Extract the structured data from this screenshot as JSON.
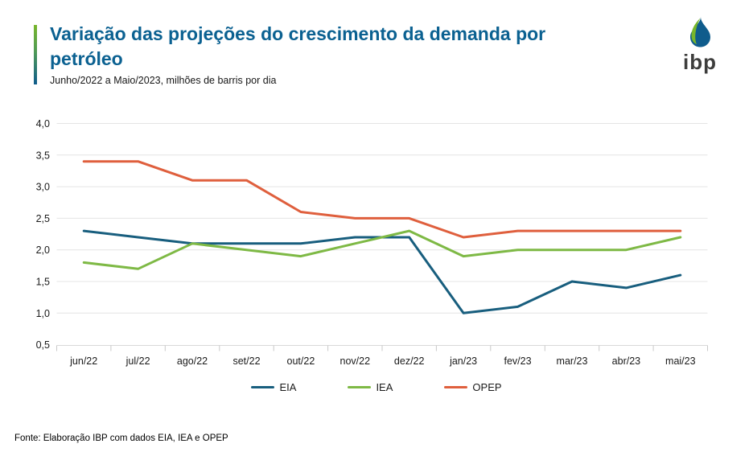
{
  "header": {
    "title": "Variação das projeções do crescimento da demanda por petróleo",
    "subtitle": "Junho/2022 a Maio/2023, milhões de barris por dia",
    "accent_green": "#78b62b",
    "accent_blue": "#0f5c8c",
    "title_color": "#0b6191"
  },
  "logo": {
    "text": "ibp",
    "drop_blue": "#0f5c8c",
    "drop_green": "#78b62b"
  },
  "chart_data": {
    "type": "line",
    "title": "Variação das projeções do crescimento da demanda por petróleo",
    "subtitle": "Junho/2022 a Maio/2023, milhões de barris por dia",
    "categories": [
      "jun/22",
      "jul/22",
      "ago/22",
      "set/22",
      "out/22",
      "nov/22",
      "dez/22",
      "jan/23",
      "fev/23",
      "mar/23",
      "abr/23",
      "mai/23"
    ],
    "series": [
      {
        "name": "EIA",
        "color": "#185e7e",
        "values": [
          2.3,
          2.2,
          2.1,
          2.1,
          2.1,
          2.2,
          2.2,
          1.0,
          1.1,
          1.5,
          1.4,
          1.6
        ]
      },
      {
        "name": "IEA",
        "color": "#7eb945",
        "values": [
          1.8,
          1.7,
          2.1,
          2.0,
          1.9,
          2.1,
          2.3,
          1.9,
          2.0,
          2.0,
          2.0,
          2.2
        ]
      },
      {
        "name": "OPEP",
        "color": "#df5f3d",
        "values": [
          3.4,
          3.4,
          3.1,
          3.1,
          2.6,
          2.5,
          2.5,
          2.2,
          2.3,
          2.3,
          2.3,
          2.3
        ]
      }
    ],
    "ylim": [
      0.5,
      4.0
    ],
    "ytick_step": 0.5,
    "ytick_labels": [
      "0,5",
      "1,0",
      "1,5",
      "2,0",
      "2,5",
      "3,0",
      "3,5",
      "4,0"
    ],
    "decimal_separator": ",",
    "grid": "horizontal",
    "legend_position": "bottom",
    "xlabel": "",
    "ylabel": ""
  },
  "footer": {
    "source": "Fonte: Elaboração IBP com dados EIA, IEA e OPEP"
  }
}
